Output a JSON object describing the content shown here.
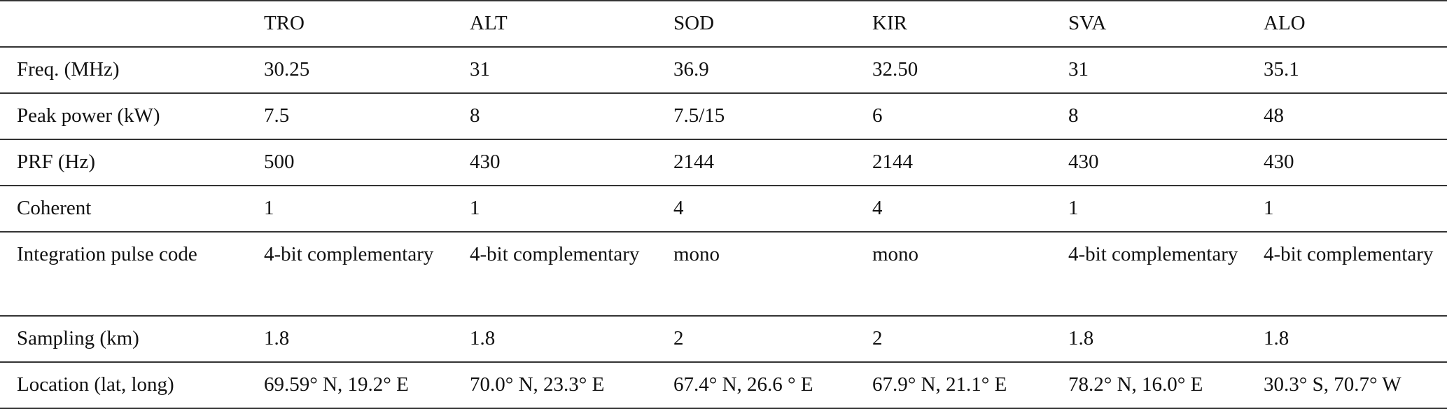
{
  "table": {
    "headers": [
      "",
      "TRO",
      "ALT",
      "SOD",
      "KIR",
      "SVA",
      "ALO"
    ],
    "rows": [
      {
        "label": "Freq. (MHz)",
        "cells": [
          "30.25",
          "31",
          "36.9",
          "32.50",
          "31",
          "35.1"
        ]
      },
      {
        "label": "Peak power (kW)",
        "cells": [
          "7.5",
          "8",
          "7.5/15",
          "6",
          "8",
          "48"
        ]
      },
      {
        "label": "PRF (Hz)",
        "cells": [
          "500",
          "430",
          "2144",
          "2144",
          "430",
          "430"
        ]
      },
      {
        "label": "Coherent",
        "cells": [
          "1",
          "1",
          "4",
          "4",
          "1",
          "1"
        ]
      },
      {
        "label": "Integration pulse code",
        "cells": [
          "4-bit complementary",
          "4-bit complementary",
          "mono",
          "mono",
          "4-bit complementary",
          "4-bit complementary"
        ]
      },
      {
        "label": "Sampling (km)",
        "cells": [
          "1.8",
          "1.8",
          "2",
          "2",
          "1.8",
          "1.8"
        ]
      },
      {
        "label": "Location (lat, long)",
        "cells": [
          "69.59° N, 19.2° E",
          "70.0° N, 23.3° E",
          "67.4° N, 26.6 ° E",
          "67.9° N, 21.1° E",
          "78.2° N, 16.0° E",
          "30.3° S, 70.7° W"
        ]
      }
    ]
  }
}
